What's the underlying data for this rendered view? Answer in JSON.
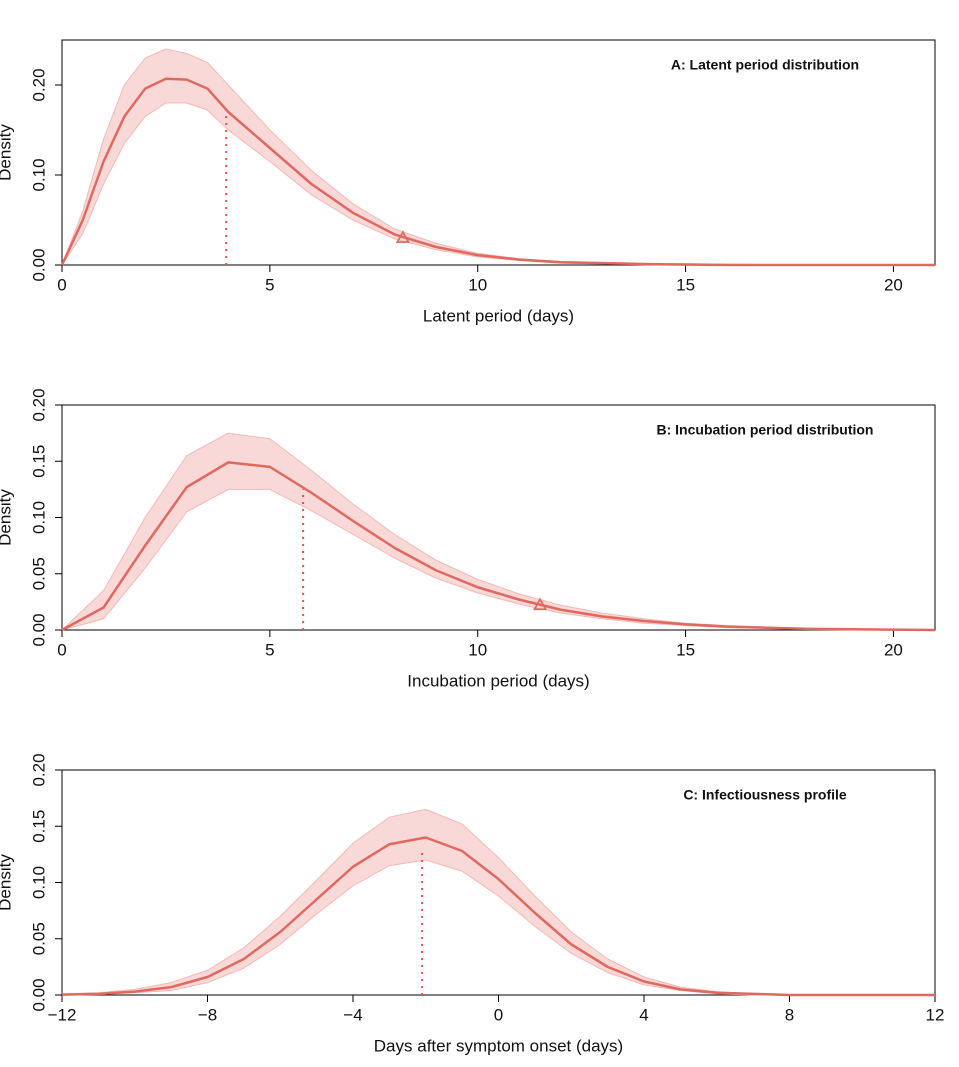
{
  "chart_data": [
    {
      "type": "line",
      "title": "A: Latent period distribution",
      "x_label": "Latent period (days)",
      "y_label": "Density",
      "x": [
        0,
        0.5,
        1,
        1.5,
        2,
        2.5,
        3,
        3.5,
        4,
        5,
        6,
        7,
        8,
        9,
        10,
        11,
        12,
        14,
        16,
        18,
        21
      ],
      "values": [
        0,
        0.05,
        0.115,
        0.165,
        0.196,
        0.207,
        0.206,
        0.196,
        0.17,
        0.13,
        0.09,
        0.058,
        0.034,
        0.02,
        0.011,
        0.006,
        0.003,
        0.001,
        0,
        0,
        0
      ],
      "band": {
        "upper": [
          0,
          0.06,
          0.14,
          0.2,
          0.23,
          0.24,
          0.235,
          0.225,
          0.2,
          0.15,
          0.105,
          0.068,
          0.04,
          0.024,
          0.013,
          0.007,
          0.004,
          0.002,
          0.001,
          0,
          0
        ],
        "lower": [
          0,
          0.035,
          0.09,
          0.135,
          0.165,
          0.18,
          0.18,
          0.172,
          0.15,
          0.115,
          0.078,
          0.05,
          0.029,
          0.017,
          0.009,
          0.005,
          0.002,
          0.001,
          0,
          0,
          0
        ]
      },
      "mean": {
        "x": 3.95,
        "y": 0.167
      },
      "percentile": {
        "x": 8.2,
        "y": 0.03
      },
      "color": "#e0695f",
      "band_color": "#f4b9b6",
      "xlim": [
        0,
        21
      ],
      "xticks": [
        0,
        5,
        10,
        15,
        20
      ],
      "ylim": [
        0,
        0.25
      ],
      "yticks": [
        {
          "value": 0,
          "label": "0.00"
        },
        {
          "value": 0.1,
          "label": "0.10"
        },
        {
          "value": 0.2,
          "label": "0.20"
        }
      ]
    },
    {
      "type": "line",
      "title": "B: Incubation period distribution",
      "x_label": "Incubation period (days)",
      "y_label": "Density",
      "x": [
        0,
        1,
        2,
        3,
        4,
        5,
        6,
        7,
        8,
        9,
        10,
        11,
        12,
        13,
        14,
        15,
        16,
        18,
        21
      ],
      "values": [
        0,
        0.02,
        0.075,
        0.127,
        0.149,
        0.145,
        0.122,
        0.097,
        0.073,
        0.053,
        0.038,
        0.027,
        0.018,
        0.012,
        0.008,
        0.005,
        0.003,
        0.001,
        0
      ],
      "band": {
        "upper": [
          0,
          0.035,
          0.1,
          0.155,
          0.175,
          0.17,
          0.142,
          0.112,
          0.085,
          0.062,
          0.045,
          0.032,
          0.022,
          0.015,
          0.01,
          0.006,
          0.004,
          0.001,
          0
        ],
        "lower": [
          0,
          0.01,
          0.055,
          0.105,
          0.125,
          0.125,
          0.106,
          0.085,
          0.064,
          0.046,
          0.033,
          0.023,
          0.015,
          0.01,
          0.006,
          0.004,
          0.002,
          0.001,
          0
        ]
      },
      "mean": {
        "x": 5.8,
        "y": 0.125
      },
      "percentile": {
        "x": 11.5,
        "y": 0.022
      },
      "color": "#e0695f",
      "band_color": "#f4b9b6",
      "xlim": [
        0,
        21
      ],
      "xticks": [
        0,
        5,
        10,
        15,
        20
      ],
      "ylim": [
        0,
        0.2
      ],
      "yticks": [
        {
          "value": 0,
          "label": "0.00"
        },
        {
          "value": 0.05,
          "label": "0.05"
        },
        {
          "value": 0.1,
          "label": "0.10"
        },
        {
          "value": 0.15,
          "label": "0.15"
        },
        {
          "value": 0.2,
          "label": "0.20"
        }
      ]
    },
    {
      "type": "line",
      "title": "C: Infectiousness profile",
      "x_label": "Days after symptom onset (days)",
      "y_label": "Density",
      "x": [
        -12,
        -11,
        -10,
        -9,
        -8,
        -7,
        -6,
        -5,
        -4,
        -3,
        -2,
        -1,
        0,
        1,
        2,
        3,
        4,
        5,
        6,
        7,
        8,
        9,
        10,
        11,
        12
      ],
      "values": [
        0.0003,
        0.001,
        0.003,
        0.007,
        0.016,
        0.032,
        0.056,
        0.085,
        0.114,
        0.134,
        0.14,
        0.128,
        0.103,
        0.073,
        0.045,
        0.025,
        0.012,
        0.005,
        0.002,
        0.001,
        0,
        0,
        0,
        0,
        0
      ],
      "band": {
        "upper": [
          0.001,
          0.002,
          0.005,
          0.011,
          0.022,
          0.042,
          0.07,
          0.102,
          0.135,
          0.158,
          0.165,
          0.152,
          0.122,
          0.088,
          0.056,
          0.032,
          0.016,
          0.007,
          0.003,
          0.001,
          0,
          0,
          0,
          0,
          0
        ],
        "lower": [
          0,
          0.0005,
          0.002,
          0.004,
          0.011,
          0.024,
          0.045,
          0.072,
          0.097,
          0.115,
          0.12,
          0.11,
          0.088,
          0.061,
          0.037,
          0.02,
          0.009,
          0.004,
          0.001,
          0,
          0,
          0,
          0,
          0,
          0
        ]
      },
      "mean": {
        "x": -2.1,
        "y": 0.13
      },
      "color": "#e0695f",
      "band_color": "#f4b9b6",
      "xlim": [
        -12,
        12
      ],
      "xticks": [
        {
          "value": -12,
          "label": "−12"
        },
        {
          "value": -8,
          "label": "−8"
        },
        {
          "value": -4,
          "label": "−4"
        },
        0,
        4,
        8,
        12
      ],
      "ylim": [
        0,
        0.2
      ],
      "yticks": [
        {
          "value": 0,
          "label": "0.00"
        },
        {
          "value": 0.05,
          "label": "0.05"
        },
        {
          "value": 0.1,
          "label": "0.10"
        },
        {
          "value": 0.15,
          "label": "0.15"
        },
        {
          "value": 0.2,
          "label": "0.20"
        }
      ]
    }
  ]
}
